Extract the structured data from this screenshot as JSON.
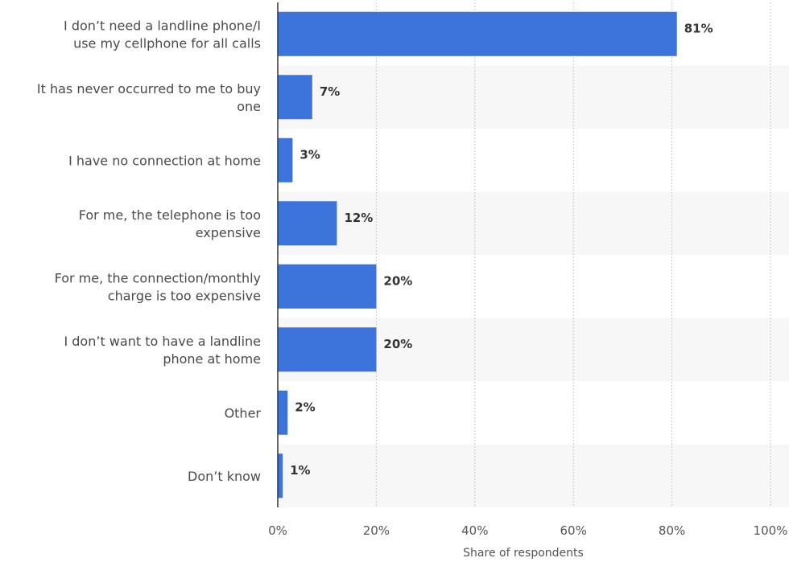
{
  "chart_data": {
    "type": "bar",
    "orientation": "horizontal",
    "categories": [
      [
        "I don’t need a landline phone/I",
        "use my cellphone for all calls"
      ],
      [
        "It has never occurred to me to buy",
        "one"
      ],
      [
        "I have no connection at home"
      ],
      [
        "For me, the telephone is too",
        "expensive"
      ],
      [
        "For me, the connection/monthly",
        "charge is too expensive"
      ],
      [
        "I don’t want to have a landline",
        "phone at home"
      ],
      [
        "Other"
      ],
      [
        "Don’t know"
      ]
    ],
    "values": [
      81,
      7,
      3,
      12,
      20,
      20,
      2,
      1
    ],
    "value_labels": [
      "81%",
      "7%",
      "3%",
      "12%",
      "20%",
      "20%",
      "2%",
      "1%"
    ],
    "xlim": [
      0,
      100
    ],
    "x_ticks": [
      0,
      20,
      40,
      60,
      80,
      100
    ],
    "x_tick_labels": [
      "0%",
      "20%",
      "40%",
      "60%",
      "80%",
      "100%"
    ],
    "xlabel": "Share of respondents",
    "grid": true,
    "colors": {
      "bar": "#3d74dc",
      "band": "#f7f7f7",
      "grid": "#c8c8c8",
      "axis": "#333333"
    }
  }
}
